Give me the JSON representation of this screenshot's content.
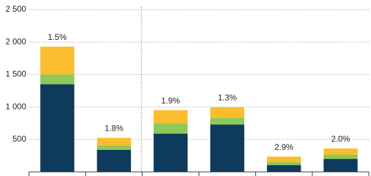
{
  "chart_data": {
    "type": "stacked_bar",
    "categories": [
      null,
      null,
      null,
      null,
      null,
      null
    ],
    "series": [
      {
        "color": "#0e3a5c",
        "values": [
          1350,
          340,
          590,
          730,
          105,
          200
        ]
      },
      {
        "color": "#8ec85a",
        "values": [
          150,
          70,
          160,
          105,
          45,
          65
        ]
      },
      {
        "color": "#fbbd2e",
        "values": [
          430,
          115,
          200,
          160,
          85,
          95
        ]
      }
    ],
    "annotations": [
      "1.5%",
      "1.8%",
      "1.9%",
      "1.3%",
      "2.9%",
      "2.0%"
    ],
    "ylim": [
      0,
      2500
    ],
    "yticks": [
      500,
      {
        "value": 1000,
        "label": "1 000"
      },
      {
        "value": 1500,
        "label": "1 500"
      },
      {
        "value": 2000,
        "label": "2 000"
      },
      {
        "value": 2500,
        "label": "2 500"
      }
    ],
    "grid": true
  }
}
